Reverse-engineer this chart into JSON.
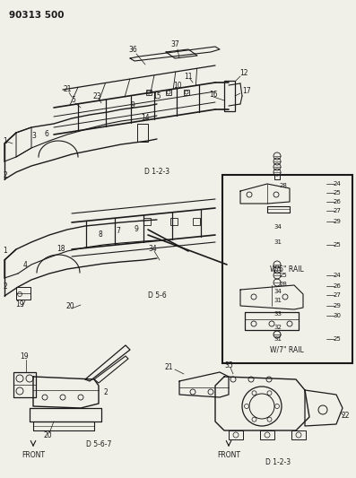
{
  "title": "90313 500",
  "bg_color": "#f0efe8",
  "line_color": "#1a1a1a",
  "text_color": "#1a1a1a",
  "w6_rail": "W/6\" RAIL",
  "w7_rail": "W/7\" RAIL"
}
